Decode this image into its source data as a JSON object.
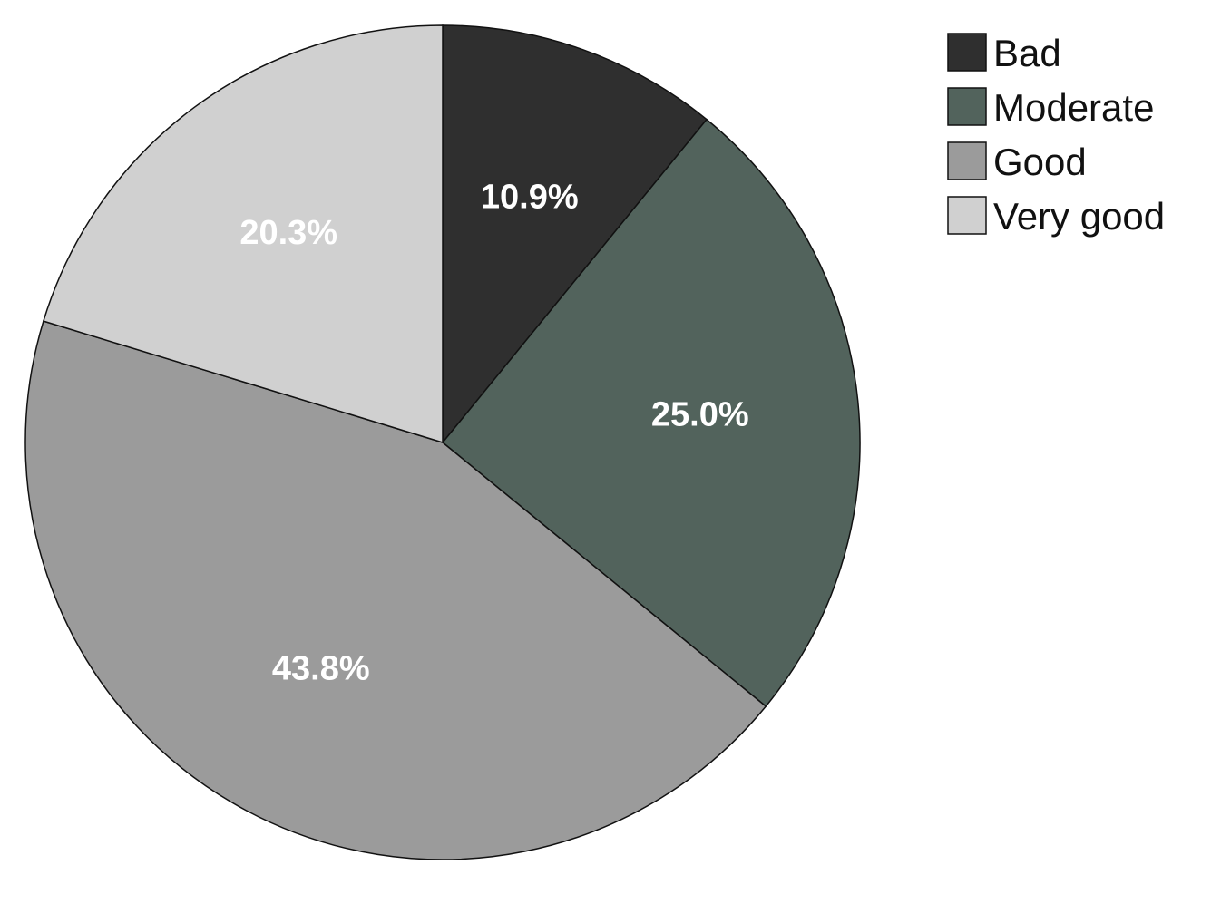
{
  "chart_data": {
    "type": "pie",
    "categories": [
      "Bad",
      "Moderate",
      "Good",
      "Very good"
    ],
    "values": [
      10.9,
      25.0,
      43.8,
      20.3
    ],
    "value_labels": [
      "10.9%",
      "25.0%",
      "43.8%",
      "20.3%"
    ],
    "colors": [
      "#2f2f2f",
      "#52635c",
      "#9b9b9b",
      "#d0d0d0"
    ],
    "legend": "top-right"
  }
}
